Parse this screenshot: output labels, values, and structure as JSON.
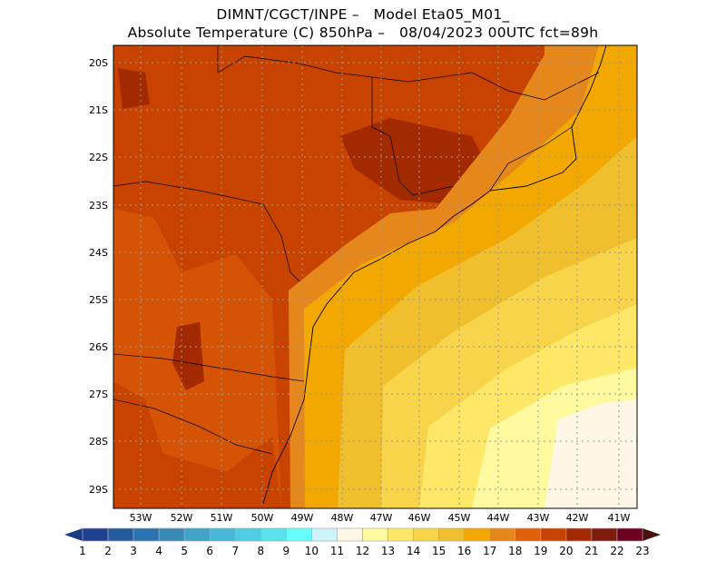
{
  "title": {
    "line1": "DIMNT/CGCT/INPE –   Model Eta05_M01_",
    "line2": "Absolute Temperature (C) 850hPa –   08/04/2023 00UTC fct=89h"
  },
  "map": {
    "lat_labels": [
      "20S",
      "21S",
      "22S",
      "23S",
      "24S",
      "25S",
      "26S",
      "27S",
      "28S",
      "29S"
    ],
    "lon_labels": [
      "53W",
      "52W",
      "51W",
      "50W",
      "49W",
      "48W",
      "47W",
      "46W",
      "45W",
      "44W",
      "43W",
      "42W",
      "41W"
    ]
  },
  "colorbar": {
    "labels": [
      "1",
      "2",
      "3",
      "4",
      "5",
      "6",
      "7",
      "8",
      "9",
      "10",
      "11",
      "12",
      "13",
      "14",
      "15",
      "16",
      "17",
      "18",
      "19",
      "20",
      "21",
      "22",
      "23"
    ],
    "colors": [
      "#1f3f8f",
      "#255a9e",
      "#2a72b0",
      "#3a8ab8",
      "#40a3c8",
      "#48b8d6",
      "#50cde0",
      "#5ae3ec",
      "#66ffff",
      "#cdf3fb",
      "#fff7e6",
      "#fffaa0",
      "#ffe868",
      "#f7d44a",
      "#f0bf2d",
      "#f2a800",
      "#e5871a",
      "#de6008",
      "#c84300",
      "#a32a00",
      "#7d1b0f",
      "#6d0020"
    ],
    "under_color": "#1a3a8a",
    "over_color": "#4a1010"
  }
}
